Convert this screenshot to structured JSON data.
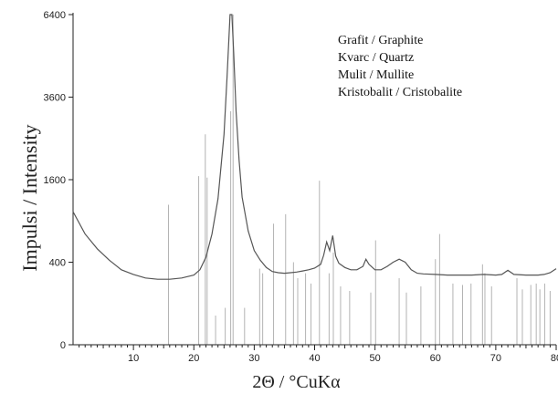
{
  "chart_data": {
    "type": "line",
    "xlabel": "2Θ / °CuKα",
    "ylabel": "Impulsi / Intensity",
    "xlim": [
      0,
      80
    ],
    "y_scale": "sqrt",
    "ylim": [
      0,
      6400
    ],
    "x_ticks": [
      10,
      20,
      30,
      40,
      50,
      60,
      70,
      80
    ],
    "y_ticks": [
      0,
      400,
      1600,
      3600,
      6400
    ],
    "x_tick_labels": [
      "10",
      "20",
      "30",
      "40",
      "50",
      "60",
      "70",
      "80"
    ],
    "y_tick_labels": [
      "0",
      "400",
      "1600",
      "3600",
      "6400"
    ],
    "grid": false,
    "legend": {
      "placement": "top-right",
      "entries": [
        "Grafit / Graphite",
        "Kvarc / Quartz",
        "Mulit / Mullite",
        "Kristobalit / Cristobalite"
      ]
    },
    "series": [
      {
        "kind": "line",
        "color": "#555555",
        "points": [
          [
            0,
            1040
          ],
          [
            2,
            720
          ],
          [
            4,
            540
          ],
          [
            6,
            420
          ],
          [
            8,
            330
          ],
          [
            10,
            290
          ],
          [
            12,
            262
          ],
          [
            14,
            252
          ],
          [
            16,
            252
          ],
          [
            18,
            262
          ],
          [
            20,
            285
          ],
          [
            21,
            330
          ],
          [
            22,
            450
          ],
          [
            23,
            720
          ],
          [
            24,
            1250
          ],
          [
            25,
            2600
          ],
          [
            25.5,
            4200
          ],
          [
            26,
            6400
          ],
          [
            26.3,
            6400
          ],
          [
            26.6,
            5000
          ],
          [
            27,
            3200
          ],
          [
            27.5,
            2000
          ],
          [
            28,
            1280
          ],
          [
            29,
            760
          ],
          [
            30,
            520
          ],
          [
            31,
            420
          ],
          [
            32,
            350
          ],
          [
            33,
            315
          ],
          [
            34,
            305
          ],
          [
            35,
            300
          ],
          [
            36,
            305
          ],
          [
            37,
            310
          ],
          [
            38,
            320
          ],
          [
            39,
            330
          ],
          [
            40,
            345
          ],
          [
            41,
            380
          ],
          [
            41.5,
            470
          ],
          [
            42,
            620
          ],
          [
            42.5,
            520
          ],
          [
            43,
            700
          ],
          [
            43.5,
            460
          ],
          [
            44,
            390
          ],
          [
            45,
            350
          ],
          [
            46,
            330
          ],
          [
            47,
            330
          ],
          [
            48,
            360
          ],
          [
            48.5,
            430
          ],
          [
            49,
            380
          ],
          [
            50,
            330
          ],
          [
            51,
            330
          ],
          [
            52,
            360
          ],
          [
            53,
            400
          ],
          [
            54,
            430
          ],
          [
            55,
            400
          ],
          [
            56,
            330
          ],
          [
            57,
            300
          ],
          [
            58,
            295
          ],
          [
            60,
            290
          ],
          [
            62,
            285
          ],
          [
            64,
            285
          ],
          [
            66,
            285
          ],
          [
            68,
            290
          ],
          [
            70,
            285
          ],
          [
            71,
            290
          ],
          [
            72,
            325
          ],
          [
            73,
            290
          ],
          [
            75,
            285
          ],
          [
            77,
            285
          ],
          [
            78,
            290
          ],
          [
            79,
            305
          ],
          [
            80,
            340
          ]
        ]
      },
      {
        "kind": "stick-reference-lines",
        "color": "#b3b3b3",
        "positions": [
          [
            15.8,
            1150
          ],
          [
            20.8,
            1670
          ],
          [
            21.9,
            2600
          ],
          [
            22.2,
            1640
          ],
          [
            23.6,
            50
          ],
          [
            25.2,
            80
          ],
          [
            26.1,
            3200
          ],
          [
            26.5,
            6400
          ],
          [
            28.4,
            80
          ],
          [
            30.9,
            340
          ],
          [
            31.4,
            300
          ],
          [
            33.2,
            860
          ],
          [
            35.2,
            1000
          ],
          [
            36.5,
            400
          ],
          [
            37.2,
            260
          ],
          [
            38.5,
            300
          ],
          [
            39.4,
            220
          ],
          [
            40.8,
            1580
          ],
          [
            42.4,
            300
          ],
          [
            43.1,
            500
          ],
          [
            44.3,
            200
          ],
          [
            45.8,
            170
          ],
          [
            49.3,
            160
          ],
          [
            50.1,
            640
          ],
          [
            54.0,
            260
          ],
          [
            55.2,
            160
          ],
          [
            57.6,
            200
          ],
          [
            60.0,
            430
          ],
          [
            60.7,
            720
          ],
          [
            62.9,
            220
          ],
          [
            64.5,
            210
          ],
          [
            65.9,
            220
          ],
          [
            67.8,
            380
          ],
          [
            68.2,
            300
          ],
          [
            69.3,
            200
          ],
          [
            73.5,
            260
          ],
          [
            74.4,
            180
          ],
          [
            75.8,
            210
          ],
          [
            76.7,
            220
          ],
          [
            77.3,
            180
          ],
          [
            78.1,
            220
          ],
          [
            79.0,
            170
          ]
        ]
      }
    ]
  }
}
